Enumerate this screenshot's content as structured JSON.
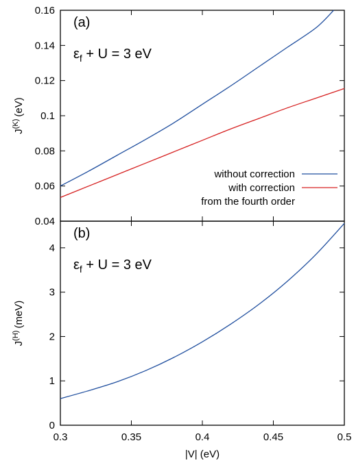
{
  "colors": {
    "without_correction": "#1f4e9e",
    "with_correction": "#d62020",
    "axes": "#000000"
  },
  "chart_data": [
    {
      "type": "line",
      "panel_label": "(a)",
      "annotation": {
        "eps": "ε",
        "sub": "f",
        "rest": " + U = 3 eV"
      },
      "ylabel": {
        "main": "J",
        "sup": "(K)",
        "unit": "(eV)"
      },
      "xlabel": "",
      "xlim": [
        0.3,
        0.5
      ],
      "ylim": [
        0.04,
        0.16
      ],
      "xticks": [
        0.3,
        0.35,
        0.4,
        0.45,
        0.5
      ],
      "yticks": [
        0.04,
        0.06,
        0.08,
        0.1,
        0.12,
        0.14,
        0.16
      ],
      "ytick_labels": [
        "0.04",
        "0.06",
        "0.08",
        "0.1",
        "0.12",
        "0.14",
        "0.16"
      ],
      "legend_position": "bottom-right",
      "series": [
        {
          "name": "without correction",
          "color_key": "without_correction",
          "x": [
            0.3,
            0.32,
            0.34,
            0.36,
            0.38,
            0.4,
            0.42,
            0.44,
            0.46,
            0.48,
            0.4925
          ],
          "y": [
            0.06,
            0.0685,
            0.0775,
            0.0865,
            0.096,
            0.1065,
            0.117,
            0.128,
            0.139,
            0.15,
            0.16
          ]
        },
        {
          "name": "with correction",
          "name_line2": "from the fourth order",
          "color_key": "with_correction",
          "x": [
            0.3,
            0.32,
            0.34,
            0.36,
            0.38,
            0.4,
            0.42,
            0.44,
            0.46,
            0.48,
            0.5
          ],
          "y": [
            0.0535,
            0.06,
            0.0665,
            0.073,
            0.0795,
            0.086,
            0.0925,
            0.0985,
            0.1045,
            0.11,
            0.1155
          ]
        }
      ]
    },
    {
      "type": "line",
      "panel_label": "(b)",
      "annotation": {
        "eps": "ε",
        "sub": "f",
        "rest": " + U = 3 eV"
      },
      "ylabel": {
        "main": "J",
        "sup": "(H)",
        "unit": "(meV)"
      },
      "xlabel": "|V| (eV)",
      "xlim": [
        0.3,
        0.5
      ],
      "ylim": [
        0,
        4.6
      ],
      "xticks": [
        0.3,
        0.35,
        0.4,
        0.45,
        0.5
      ],
      "xtick_labels": [
        "0.3",
        "0.35",
        "0.4",
        "0.45",
        "0.5"
      ],
      "yticks": [
        0,
        1,
        2,
        3,
        4
      ],
      "ytick_labels": [
        "0",
        "1",
        "2",
        "3",
        "4"
      ],
      "series": [
        {
          "color_key": "without_correction",
          "x": [
            0.3,
            0.32,
            0.34,
            0.36,
            0.38,
            0.4,
            0.42,
            0.44,
            0.46,
            0.48,
            0.5
          ],
          "y": [
            0.6,
            0.78,
            0.98,
            1.23,
            1.53,
            1.88,
            2.28,
            2.73,
            3.25,
            3.85,
            4.55
          ]
        }
      ]
    }
  ]
}
